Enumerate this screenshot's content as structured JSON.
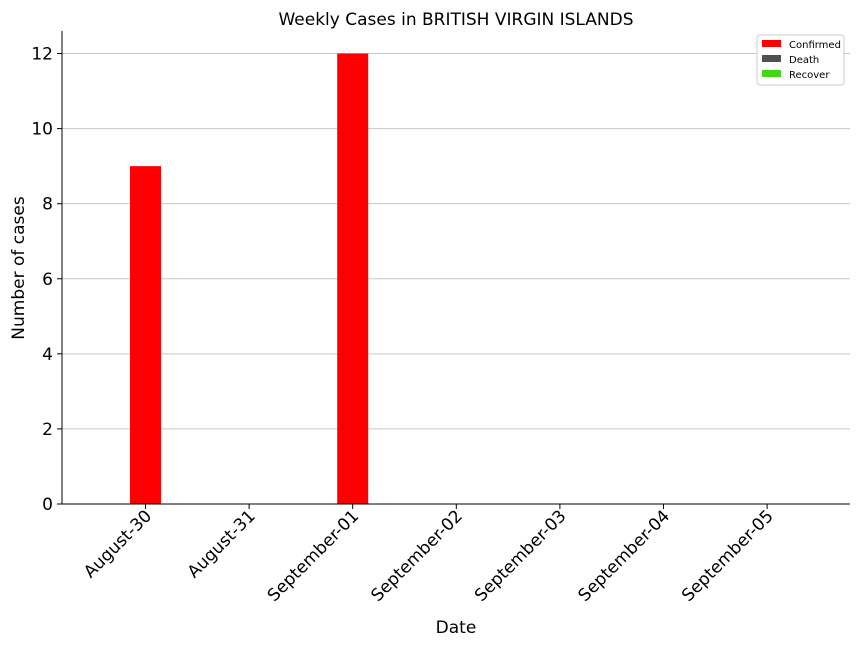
{
  "chart_data": {
    "type": "bar",
    "title": "Weekly Cases in BRITISH VIRGIN ISLANDS",
    "xlabel": "Date",
    "ylabel": "Number of cases",
    "categories": [
      "August-30",
      "August-31",
      "September-01",
      "September-02",
      "September-03",
      "September-04",
      "September-05"
    ],
    "series": [
      {
        "name": "Confirmed",
        "color": "#ff0000",
        "values": [
          9,
          0,
          12,
          0,
          0,
          0,
          0
        ]
      },
      {
        "name": "Death",
        "color": "#505050",
        "values": [
          0,
          0,
          0,
          0,
          0,
          0,
          0
        ]
      },
      {
        "name": "Recover",
        "color": "#3fd916",
        "values": [
          0,
          0,
          0,
          0,
          0,
          0,
          0
        ]
      }
    ],
    "ylim": [
      0,
      12.6
    ],
    "yticks": [
      0,
      2,
      4,
      6,
      8,
      10,
      12
    ],
    "grid": "horizontal",
    "legend_position": "top-right"
  }
}
